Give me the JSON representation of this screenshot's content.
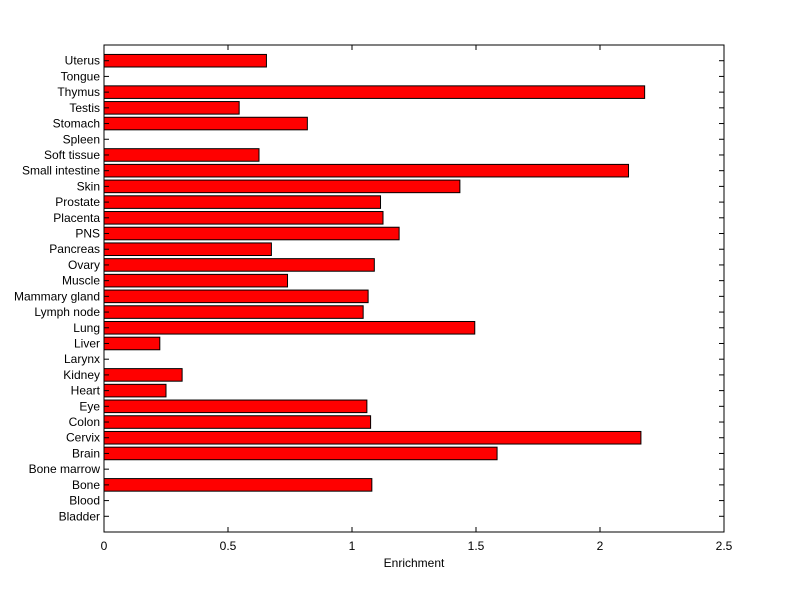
{
  "chart_data": {
    "type": "bar",
    "orientation": "horizontal",
    "categories": [
      "Bladder",
      "Blood",
      "Bone",
      "Bone marrow",
      "Brain",
      "Cervix",
      "Colon",
      "Eye",
      "Heart",
      "Kidney",
      "Larynx",
      "Liver",
      "Lung",
      "Lymph node",
      "Mammary gland",
      "Muscle",
      "Ovary",
      "Pancreas",
      "PNS",
      "Placenta",
      "Prostate",
      "Skin",
      "Small intestine",
      "Soft tissue",
      "Spleen",
      "Stomach",
      "Testis",
      "Thymus",
      "Tongue",
      "Uterus"
    ],
    "values": [
      0,
      0,
      1.08,
      0,
      1.585,
      2.165,
      1.075,
      1.06,
      0.25,
      0.315,
      0,
      0.225,
      1.495,
      1.045,
      1.065,
      0.74,
      1.09,
      0.675,
      1.19,
      1.125,
      1.115,
      1.435,
      2.115,
      0.625,
      0,
      0.82,
      0.545,
      2.18,
      0,
      0.655
    ],
    "xlabel": "Enrichment",
    "ylabel": "",
    "title": "",
    "xlim": [
      0,
      2.5
    ],
    "xticks": [
      "0",
      "0.5",
      "1",
      "1.5",
      "2",
      "2.5"
    ],
    "bar_color": "#ff0000",
    "grid": false
  }
}
